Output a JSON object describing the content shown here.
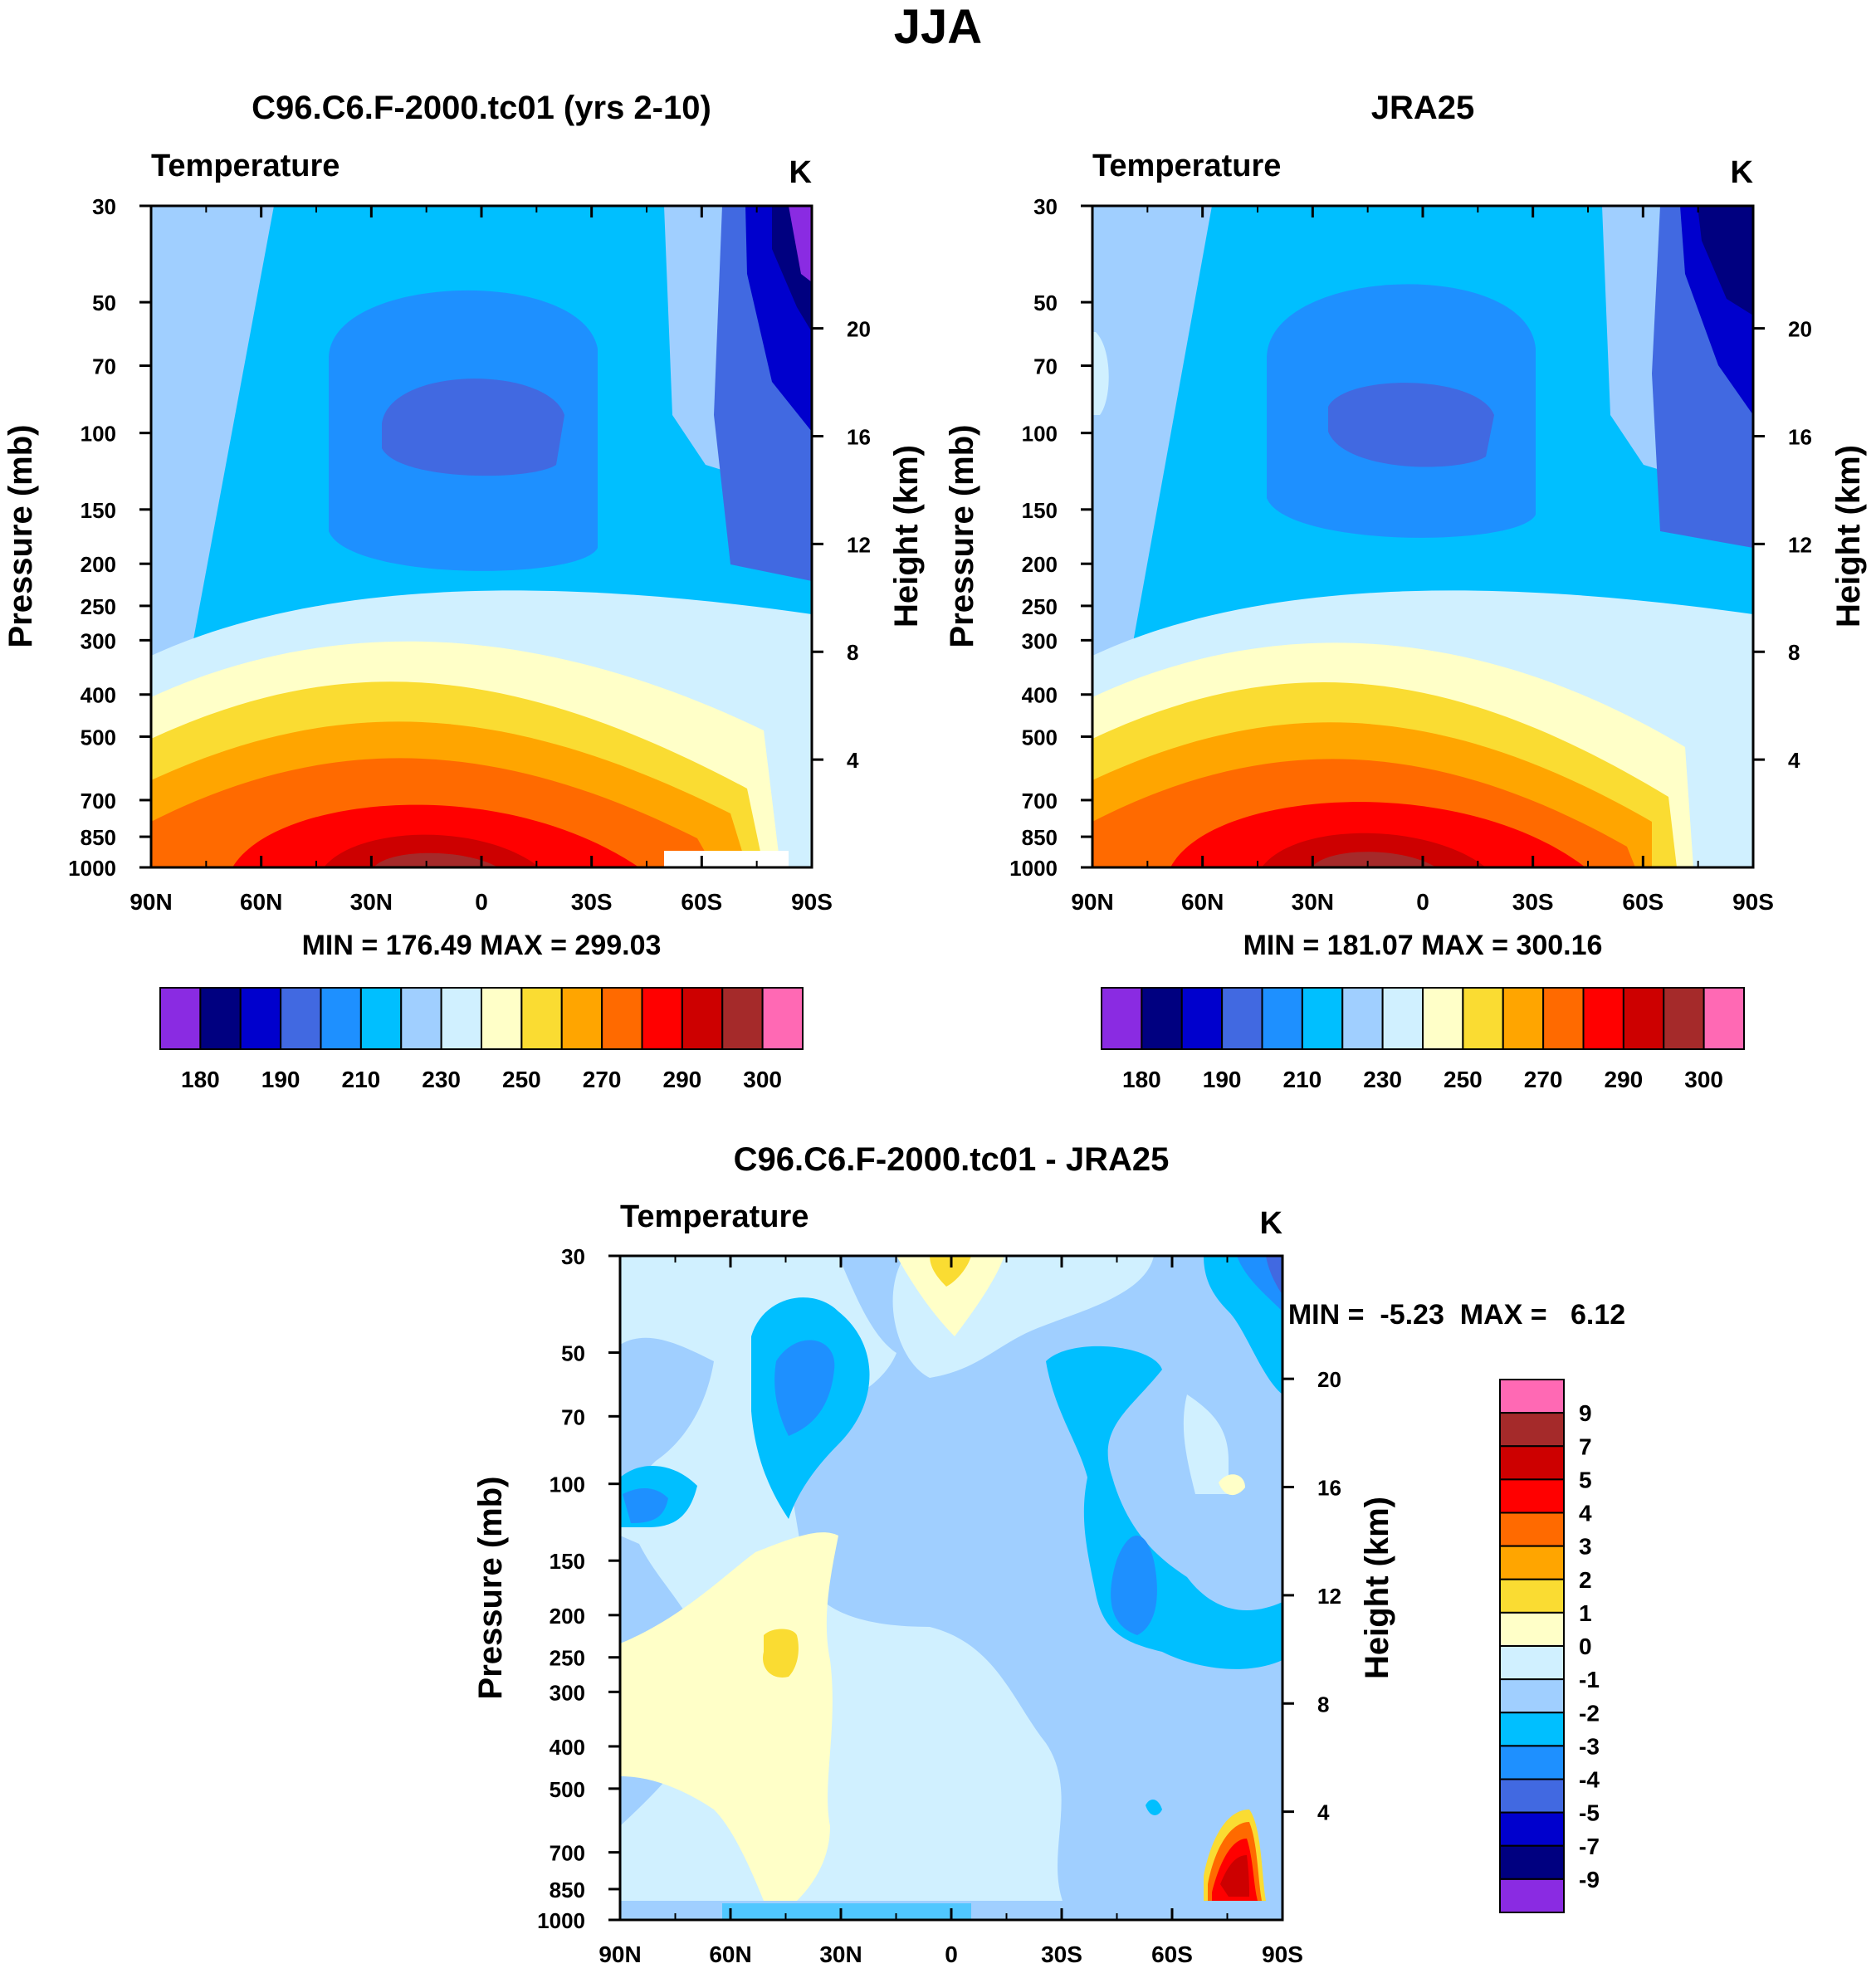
{
  "page": {
    "title": "JJA"
  },
  "colors": {
    "mean_levels": [
      "#8a2be2",
      "#000080",
      "#0000cd",
      "#4169e1",
      "#1e90ff",
      "#00bfff",
      "#a0cfff",
      "#d0f0ff",
      "#ffffc8",
      "#fadc32",
      "#ffa500",
      "#ff6a00",
      "#ff0000",
      "#cd0000",
      "#a52a2a",
      "#ff69b4"
    ],
    "diff_levels": [
      "#8a2be2",
      "#000080",
      "#0000cd",
      "#4169e1",
      "#1e90ff",
      "#00bfff",
      "#a0cfff",
      "#d0f0ff",
      "#ffffc8",
      "#fadc32",
      "#ffa500",
      "#ff6a00",
      "#ff0000",
      "#cd0000",
      "#a52a2a",
      "#ff69b4"
    ]
  },
  "chart_data": [
    {
      "id": "model",
      "type": "heatmap",
      "title": "C96.C6.F-2000.tc01 (yrs 2-10)",
      "left_label": "Temperature",
      "right_label": "K",
      "xlabel": "",
      "ylabel": "Pressure (mb)",
      "ylabel_right": "Height (km)",
      "x_ticks": [
        "90N",
        "60N",
        "30N",
        "0",
        "30S",
        "60S",
        "90S"
      ],
      "x_values": [
        90,
        60,
        30,
        0,
        -30,
        -60,
        -90
      ],
      "y_ticks": [
        30,
        50,
        70,
        100,
        150,
        200,
        250,
        300,
        400,
        500,
        700,
        850,
        1000
      ],
      "y_range": [
        30,
        1000
      ],
      "height_ticks": [
        20,
        16,
        12,
        8,
        4
      ],
      "stats": "MIN = 176.49  MAX = 299.03",
      "min": 176.49,
      "max": 299.03,
      "colorbar_labels": [
        "180",
        "190",
        "210",
        "230",
        "250",
        "270",
        "290",
        "300"
      ]
    },
    {
      "id": "obs",
      "type": "heatmap",
      "title": "JRA25",
      "left_label": "Temperature",
      "right_label": "K",
      "ylabel": "Pressure (mb)",
      "ylabel_right": "Height (km)",
      "x_ticks": [
        "90N",
        "60N",
        "30N",
        "0",
        "30S",
        "60S",
        "90S"
      ],
      "x_values": [
        90,
        60,
        30,
        0,
        -30,
        -60,
        -90
      ],
      "y_ticks": [
        30,
        50,
        70,
        100,
        150,
        200,
        250,
        300,
        400,
        500,
        700,
        850,
        1000
      ],
      "y_range": [
        30,
        1000
      ],
      "height_ticks": [
        20,
        16,
        12,
        8,
        4
      ],
      "stats": "MIN = 181.07  MAX = 300.16",
      "min": 181.07,
      "max": 300.16,
      "colorbar_labels": [
        "180",
        "190",
        "210",
        "230",
        "250",
        "270",
        "290",
        "300"
      ]
    },
    {
      "id": "diff",
      "type": "heatmap",
      "title": "C96.C6.F-2000.tc01 - JRA25",
      "left_label": "Temperature",
      "right_label": "K",
      "ylabel": "Pressure (mb)",
      "ylabel_right": "Height (km)",
      "x_ticks": [
        "90N",
        "60N",
        "30N",
        "0",
        "30S",
        "60S",
        "90S"
      ],
      "x_values": [
        90,
        60,
        30,
        0,
        -30,
        -60,
        -90
      ],
      "y_ticks": [
        30,
        50,
        70,
        100,
        150,
        200,
        250,
        300,
        400,
        500,
        700,
        850,
        1000
      ],
      "y_range": [
        30,
        1000
      ],
      "height_ticks": [
        20,
        16,
        12,
        8,
        4
      ],
      "stats": "MIN =  -5.23  MAX =   6.12",
      "min": -5.23,
      "max": 6.12,
      "colorbar_labels": [
        "9",
        "7",
        "5",
        "4",
        "3",
        "2",
        "1",
        "0",
        "-1",
        "-2",
        "-3",
        "-4",
        "-5",
        "-7",
        "-9"
      ]
    }
  ]
}
